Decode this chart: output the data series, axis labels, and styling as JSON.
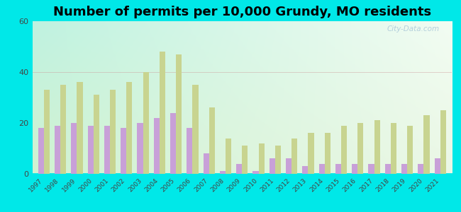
{
  "title": "Number of permits per 10,000 Grundy, MO residents",
  "years": [
    1997,
    1998,
    1999,
    2000,
    2001,
    2002,
    2003,
    2004,
    2005,
    2006,
    2007,
    2008,
    2009,
    2010,
    2011,
    2012,
    2013,
    2014,
    2015,
    2016,
    2017,
    2018,
    2019,
    2020,
    2021
  ],
  "grundy": [
    18,
    19,
    20,
    19,
    19,
    18,
    20,
    22,
    24,
    18,
    8,
    1,
    4,
    1,
    6,
    6,
    3,
    4,
    4,
    4,
    4,
    4,
    4,
    4,
    6
  ],
  "missouri": [
    33,
    35,
    36,
    31,
    33,
    36,
    40,
    48,
    47,
    35,
    26,
    14,
    11,
    12,
    11,
    14,
    16,
    16,
    19,
    20,
    21,
    20,
    19,
    23,
    25
  ],
  "grundy_color": "#c8a0d8",
  "missouri_color": "#c8d490",
  "background_top_left": "#b0e8d8",
  "background_top_right": "#e8f4e8",
  "background_bottom": "#e0f4e0",
  "outer_background": "#00e8e8",
  "ylim": [
    0,
    60
  ],
  "yticks": [
    0,
    20,
    40,
    60
  ],
  "title_fontsize": 13,
  "bar_width": 0.35
}
